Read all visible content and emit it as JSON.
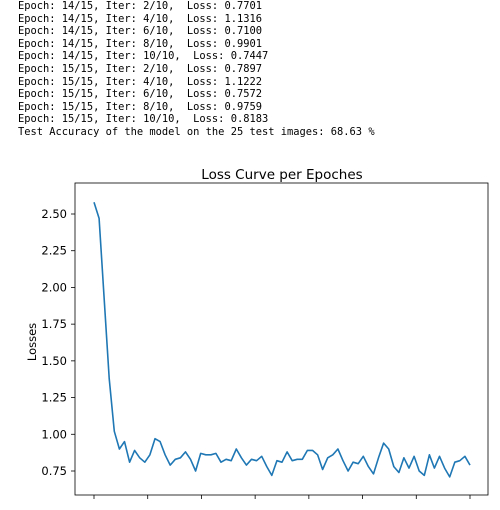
{
  "console": {
    "lines": [
      "Epoch: 14/15, Iter: 2/10,  Loss: 0.7701",
      "Epoch: 14/15, Iter: 4/10,  Loss: 1.1316",
      "Epoch: 14/15, Iter: 6/10,  Loss: 0.7100",
      "Epoch: 14/15, Iter: 8/10,  Loss: 0.9901",
      "Epoch: 14/15, Iter: 10/10,  Loss: 0.7447",
      "Epoch: 15/15, Iter: 2/10,  Loss: 0.7897",
      "Epoch: 15/15, Iter: 4/10,  Loss: 1.1222",
      "Epoch: 15/15, Iter: 6/10,  Loss: 0.7572",
      "Epoch: 15/15, Iter: 8/10,  Loss: 0.9759",
      "Epoch: 15/15, Iter: 10/10,  Loss: 0.8183",
      "Test Accuracy of the model on the 25 test images: 68.63 %"
    ]
  },
  "chart_data": {
    "type": "line",
    "title": "Loss Curve per Epoches",
    "xlabel": "",
    "ylabel": "Losses",
    "ylim": [
      0.7,
      2.58
    ],
    "yticks": [
      "0.75",
      "1.00",
      "1.25",
      "1.50",
      "1.75",
      "2.00",
      "2.25",
      "2.50"
    ],
    "ytick_values": [
      0.75,
      1.0,
      1.25,
      1.5,
      1.75,
      2.0,
      2.25,
      2.5
    ],
    "xticks_count": 8,
    "xtick_labels_visible": false,
    "grid": false,
    "line_color": "#1f77b4",
    "series": [
      {
        "values": [
          2.58,
          2.47,
          1.92,
          1.38,
          1.02,
          0.9,
          0.95,
          0.81,
          0.89,
          0.84,
          0.81,
          0.86,
          0.97,
          0.95,
          0.86,
          0.79,
          0.83,
          0.84,
          0.88,
          0.83,
          0.75,
          0.87,
          0.86,
          0.86,
          0.87,
          0.81,
          0.83,
          0.82,
          0.9,
          0.84,
          0.79,
          0.83,
          0.82,
          0.85,
          0.78,
          0.72,
          0.82,
          0.81,
          0.88,
          0.82,
          0.83,
          0.83,
          0.89,
          0.89,
          0.86,
          0.76,
          0.84,
          0.86,
          0.9,
          0.82,
          0.75,
          0.81,
          0.8,
          0.85,
          0.78,
          0.73,
          0.84,
          0.94,
          0.9,
          0.78,
          0.74,
          0.84,
          0.77,
          0.85,
          0.75,
          0.72,
          0.86,
          0.77,
          0.85,
          0.77,
          0.71,
          0.81,
          0.82,
          0.85,
          0.79
        ]
      }
    ]
  }
}
